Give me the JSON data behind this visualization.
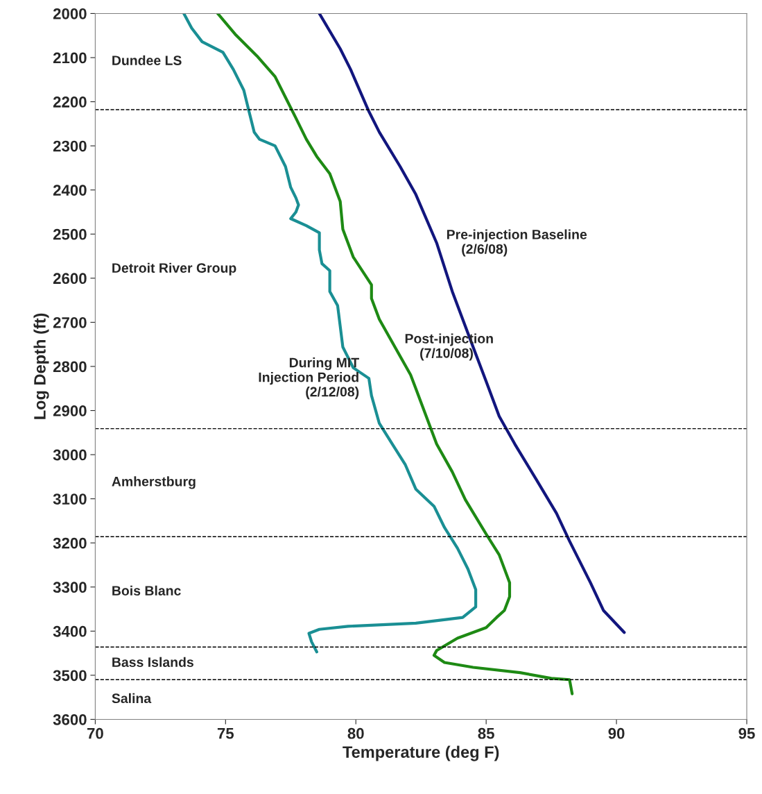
{
  "chart_data": {
    "type": "line",
    "xlabel": "Temperature (deg F)",
    "ylabel": "Log Depth (ft)",
    "xlim": [
      70,
      95
    ],
    "xticks": [
      70,
      75,
      80,
      85,
      90,
      95
    ],
    "ylim": [
      3600,
      2000
    ],
    "yticks": [
      2000,
      2100,
      2200,
      2300,
      2400,
      2500,
      2600,
      2700,
      2800,
      2900,
      3000,
      3100,
      3200,
      3300,
      3400,
      3500,
      3600
    ],
    "grid": false,
    "legend": false,
    "line_style": "solid",
    "marker": "none",
    "series": [
      {
        "color": "#12167e",
        "x": [
          78.6,
          79.4,
          79.8,
          80.5,
          80.9,
          81.7,
          82.3,
          83.1,
          83.7,
          84.5,
          85.0,
          85.5,
          86.1,
          86.9,
          87.7,
          88.2,
          89.0,
          89.5,
          90.3
        ],
        "values": [
          2000,
          2080,
          2127,
          2222,
          2269,
          2347,
          2410,
          2520,
          2630,
          2756,
          2834,
          2913,
          2976,
          3054,
          3133,
          3196,
          3290,
          3353,
          3403
        ]
      },
      {
        "color": "#1e8a14",
        "x": [
          74.7,
          75.4,
          76.2,
          76.9,
          77.3,
          77.7,
          78.1,
          78.5,
          79.0,
          79.4,
          79.5,
          79.9,
          80.6,
          80.6,
          80.9,
          81.5,
          82.1,
          82.3,
          82.7,
          83.1,
          83.7,
          84.2,
          85.0,
          85.5,
          85.9,
          85.9,
          85.7,
          85.4,
          85.0,
          83.9,
          83.1,
          83.0,
          83.4,
          84.5,
          86.3,
          87.5,
          88.2,
          88.3
        ],
        "values": [
          2000,
          2049,
          2096,
          2143,
          2190,
          2237,
          2285,
          2324,
          2363,
          2426,
          2489,
          2552,
          2615,
          2646,
          2693,
          2756,
          2819,
          2850,
          2913,
          2976,
          3039,
          3102,
          3180,
          3227,
          3290,
          3322,
          3353,
          3369,
          3392,
          3416,
          3444,
          3455,
          3471,
          3482,
          3494,
          3507,
          3510,
          3542
        ]
      },
      {
        "color": "#1a8f94",
        "x": [
          73.4,
          73.7,
          74.1,
          74.9,
          75.3,
          75.7,
          75.9,
          76.1,
          76.3,
          76.9,
          77.3,
          77.5,
          77.7,
          77.8,
          77.7,
          77.5,
          78.1,
          78.6,
          78.6,
          78.7,
          79.0,
          79.0,
          79.3,
          79.4,
          79.5,
          79.9,
          80.5,
          80.6,
          80.9,
          81.4,
          81.9,
          82.3,
          83.0,
          83.4,
          83.9,
          84.3,
          84.6,
          84.6,
          84.1,
          82.3,
          79.7,
          78.6,
          78.2,
          78.3,
          78.5
        ],
        "values": [
          2000,
          2033,
          2064,
          2088,
          2127,
          2174,
          2222,
          2269,
          2285,
          2300,
          2347,
          2394,
          2418,
          2434,
          2450,
          2465,
          2481,
          2497,
          2536,
          2567,
          2583,
          2630,
          2662,
          2709,
          2756,
          2803,
          2827,
          2866,
          2929,
          2976,
          3023,
          3078,
          3117,
          3165,
          3212,
          3259,
          3306,
          3345,
          3369,
          3382,
          3389,
          3396,
          3405,
          3424,
          3447
        ]
      }
    ],
    "ref_lines": [
      {
        "axis": "y",
        "value": 2218,
        "color": "#000000",
        "line_style": "dashed"
      },
      {
        "axis": "y",
        "value": 2941,
        "color": "#000000",
        "line_style": "dashed"
      },
      {
        "axis": "y",
        "value": 3186,
        "color": "#000000",
        "line_style": "dashed"
      },
      {
        "axis": "y",
        "value": 3436,
        "color": "#000000",
        "line_style": "dashed"
      },
      {
        "axis": "y",
        "value": 3510,
        "color": "#000000",
        "line_style": "dashed"
      }
    ],
    "annotations": [
      "Dundee LS",
      "Detroit River Group",
      "Amherstburg",
      "Bois Blanc",
      "Bass Islands",
      "Salina",
      {
        "text": "Pre-injection Baseline\n    (2/6/08)",
        "x": 83.1,
        "y": 2520
      },
      {
        "text": "Post-injection\n    (7/10/08)",
        "x": 81.5,
        "y": 2756
      },
      {
        "text": "During MIT\nInjection Period\n(2/12/08)",
        "x": 80.5,
        "y": 2827
      }
    ]
  }
}
